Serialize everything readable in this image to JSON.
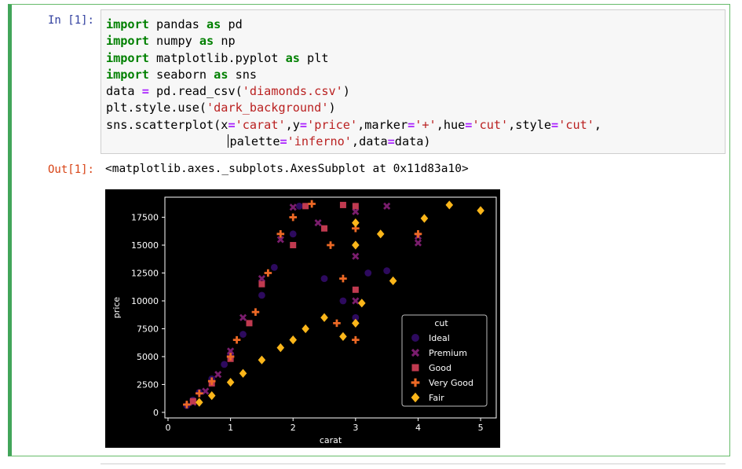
{
  "cell": {
    "in_prompt": "In [1]:",
    "out_prompt": "Out[1]:",
    "output_text": "<matplotlib.axes._subplots.AxesSubplot at 0x11d83a10>"
  },
  "code": [
    [
      {
        "t": "import",
        "c": "kw"
      },
      {
        "t": " pandas "
      },
      {
        "t": "as",
        "c": "kw"
      },
      {
        "t": " pd"
      }
    ],
    [
      {
        "t": "import",
        "c": "kw"
      },
      {
        "t": " numpy "
      },
      {
        "t": "as",
        "c": "kw"
      },
      {
        "t": " np"
      }
    ],
    [
      {
        "t": "import",
        "c": "kw"
      },
      {
        "t": " matplotlib.pyplot "
      },
      {
        "t": "as",
        "c": "kw"
      },
      {
        "t": " plt"
      }
    ],
    [
      {
        "t": "import",
        "c": "kw"
      },
      {
        "t": " seaborn "
      },
      {
        "t": "as",
        "c": "kw"
      },
      {
        "t": " sns"
      }
    ],
    [
      {
        "t": "data "
      },
      {
        "t": "=",
        "c": "op"
      },
      {
        "t": " pd.read_csv("
      },
      {
        "t": "'diamonds.csv'",
        "c": "str"
      },
      {
        "t": ")"
      }
    ],
    [
      {
        "t": "plt.style.use("
      },
      {
        "t": "'dark_background'",
        "c": "str"
      },
      {
        "t": ")"
      }
    ],
    [
      {
        "t": "sns.scatterplot(x"
      },
      {
        "t": "=",
        "c": "op"
      },
      {
        "t": "'carat'",
        "c": "str"
      },
      {
        "t": ",y"
      },
      {
        "t": "=",
        "c": "op"
      },
      {
        "t": "'price'",
        "c": "str"
      },
      {
        "t": ",marker"
      },
      {
        "t": "=",
        "c": "op"
      },
      {
        "t": "'+'",
        "c": "str"
      },
      {
        "t": ",hue"
      },
      {
        "t": "=",
        "c": "op"
      },
      {
        "t": "'cut'",
        "c": "str"
      },
      {
        "t": ",style"
      },
      {
        "t": "=",
        "c": "op"
      },
      {
        "t": "'cut'",
        "c": "str"
      },
      {
        "t": ","
      }
    ],
    [
      {
        "t": "                 "
      },
      {
        "t": "",
        "c": "cursor"
      },
      {
        "t": "palette"
      },
      {
        "t": "=",
        "c": "op"
      },
      {
        "t": "'inferno'",
        "c": "str"
      },
      {
        "t": ",data"
      },
      {
        "t": "=",
        "c": "op"
      },
      {
        "t": "data)"
      }
    ]
  ],
  "chart_data": {
    "type": "scatter",
    "title": "",
    "xlabel": "carat",
    "ylabel": "price",
    "xlim": [
      -0.05,
      5.25
    ],
    "ylim": [
      -500,
      19300
    ],
    "xticks": [
      0,
      1,
      2,
      3,
      4,
      5
    ],
    "yticks": [
      0,
      2500,
      5000,
      7500,
      10000,
      12500,
      15000,
      17500
    ],
    "grid": false,
    "background": "#000000",
    "legend": {
      "title": "cut",
      "placement": "lower-right",
      "entries": [
        {
          "name": "Ideal",
          "color": "#2d0a5e",
          "marker": "circle"
        },
        {
          "name": "Premium",
          "color": "#7a1d6d",
          "marker": "x"
        },
        {
          "name": "Good",
          "color": "#c03a50",
          "marker": "square"
        },
        {
          "name": "Very Good",
          "color": "#ed6925",
          "marker": "plus"
        },
        {
          "name": "Fair",
          "color": "#fbb61a",
          "marker": "diamond"
        }
      ]
    },
    "series": [
      {
        "name": "Ideal",
        "points": [
          [
            0.3,
            600
          ],
          [
            0.4,
            1100
          ],
          [
            0.5,
            1800
          ],
          [
            0.7,
            3000
          ],
          [
            0.9,
            4300
          ],
          [
            1.0,
            5200
          ],
          [
            1.2,
            7000
          ],
          [
            1.5,
            10500
          ],
          [
            1.7,
            13000
          ],
          [
            2.0,
            16000
          ],
          [
            2.1,
            18500
          ],
          [
            2.5,
            12000
          ],
          [
            2.8,
            10000
          ],
          [
            3.0,
            8500
          ],
          [
            3.2,
            12500
          ],
          [
            3.5,
            12700
          ]
        ]
      },
      {
        "name": "Premium",
        "points": [
          [
            0.4,
            900
          ],
          [
            0.6,
            1900
          ],
          [
            0.8,
            3400
          ],
          [
            1.0,
            5500
          ],
          [
            1.2,
            8500
          ],
          [
            1.5,
            12000
          ],
          [
            1.8,
            15500
          ],
          [
            2.0,
            18400
          ],
          [
            2.4,
            17000
          ],
          [
            3.0,
            18000
          ],
          [
            3.0,
            14000
          ],
          [
            3.0,
            10000
          ],
          [
            3.5,
            18500
          ],
          [
            4.0,
            15200
          ],
          [
            4.0,
            15800
          ]
        ]
      },
      {
        "name": "Good",
        "points": [
          [
            0.4,
            1000
          ],
          [
            0.7,
            2600
          ],
          [
            1.0,
            4800
          ],
          [
            1.3,
            8000
          ],
          [
            1.5,
            11500
          ],
          [
            2.0,
            15000
          ],
          [
            2.2,
            18500
          ],
          [
            2.5,
            16500
          ],
          [
            2.8,
            18600
          ],
          [
            3.0,
            11000
          ],
          [
            3.0,
            18500
          ]
        ]
      },
      {
        "name": "Very Good",
        "points": [
          [
            0.3,
            700
          ],
          [
            0.5,
            1700
          ],
          [
            0.7,
            2800
          ],
          [
            1.0,
            5000
          ],
          [
            1.1,
            6500
          ],
          [
            1.4,
            9000
          ],
          [
            1.6,
            12500
          ],
          [
            1.8,
            16000
          ],
          [
            2.0,
            17500
          ],
          [
            2.3,
            18700
          ],
          [
            2.6,
            15000
          ],
          [
            2.8,
            12000
          ],
          [
            3.0,
            6500
          ],
          [
            3.0,
            16500
          ],
          [
            4.0,
            16000
          ],
          [
            2.7,
            8000
          ]
        ]
      },
      {
        "name": "Fair",
        "points": [
          [
            0.5,
            900
          ],
          [
            0.7,
            1500
          ],
          [
            1.0,
            2700
          ],
          [
            1.2,
            3500
          ],
          [
            1.5,
            4700
          ],
          [
            1.8,
            5800
          ],
          [
            2.0,
            6500
          ],
          [
            2.2,
            7500
          ],
          [
            2.5,
            8500
          ],
          [
            2.8,
            6800
          ],
          [
            3.0,
            8000
          ],
          [
            3.1,
            9800
          ],
          [
            3.0,
            17000
          ],
          [
            3.0,
            15000
          ],
          [
            3.4,
            16000
          ],
          [
            3.6,
            11800
          ],
          [
            4.1,
            17400
          ],
          [
            4.5,
            18600
          ],
          [
            5.0,
            18100
          ]
        ]
      }
    ]
  }
}
